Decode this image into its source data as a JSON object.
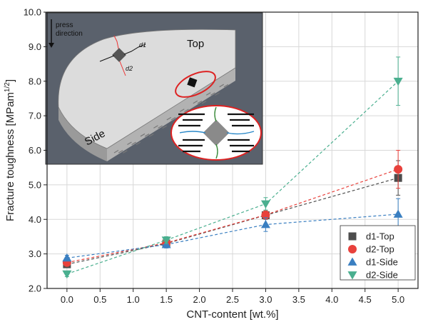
{
  "chart_data": {
    "type": "scatter",
    "xlabel": "CNT-content [wt.%]",
    "ylabel": "Fracture toughness [MPam",
    "ylabel_sup": "1/2",
    "ylabel_end": "]",
    "xlim": [
      -0.3,
      5.3
    ],
    "ylim": [
      2.0,
      10.0
    ],
    "xticks": [
      "0.0",
      "0.5",
      "1.0",
      "1.5",
      "2.0",
      "2.5",
      "3.0",
      "3.5",
      "4.0",
      "4.5",
      "5.0"
    ],
    "yticks": [
      "2.0",
      "3.0",
      "4.0",
      "5.0",
      "6.0",
      "7.0",
      "8.0",
      "9.0",
      "10.0"
    ],
    "grid": true,
    "legend_position": "bottom-right",
    "x": [
      0.0,
      1.5,
      3.0,
      5.0
    ],
    "series": [
      {
        "name": "d1-Top",
        "marker": "square",
        "color": "#4d4d4d",
        "values": [
          2.7,
          3.3,
          4.12,
          5.2
        ],
        "errors": [
          0.08,
          0.1,
          0.12,
          0.5
        ]
      },
      {
        "name": "d2-Top",
        "marker": "circle",
        "color": "#e8413c",
        "values": [
          2.75,
          3.32,
          4.13,
          5.45
        ],
        "errors": [
          0.08,
          0.1,
          0.12,
          0.55
        ]
      },
      {
        "name": "d1-Side",
        "marker": "triangle-up",
        "color": "#3a7fc1",
        "values": [
          2.88,
          3.27,
          3.85,
          4.15
        ],
        "errors": [
          0.08,
          0.1,
          0.2,
          0.45
        ]
      },
      {
        "name": "d2-Side",
        "marker": "triangle-down",
        "color": "#4aaf8f",
        "values": [
          2.42,
          3.4,
          4.45,
          8.0
        ],
        "errors": [
          0.08,
          0.1,
          0.18,
          0.7
        ]
      }
    ]
  },
  "inset": {
    "press_label_line1": "press",
    "press_label_line2": "direction",
    "top_label": "Top",
    "side_label": "Side",
    "d1_label": "d1",
    "d2_label": "d2"
  }
}
